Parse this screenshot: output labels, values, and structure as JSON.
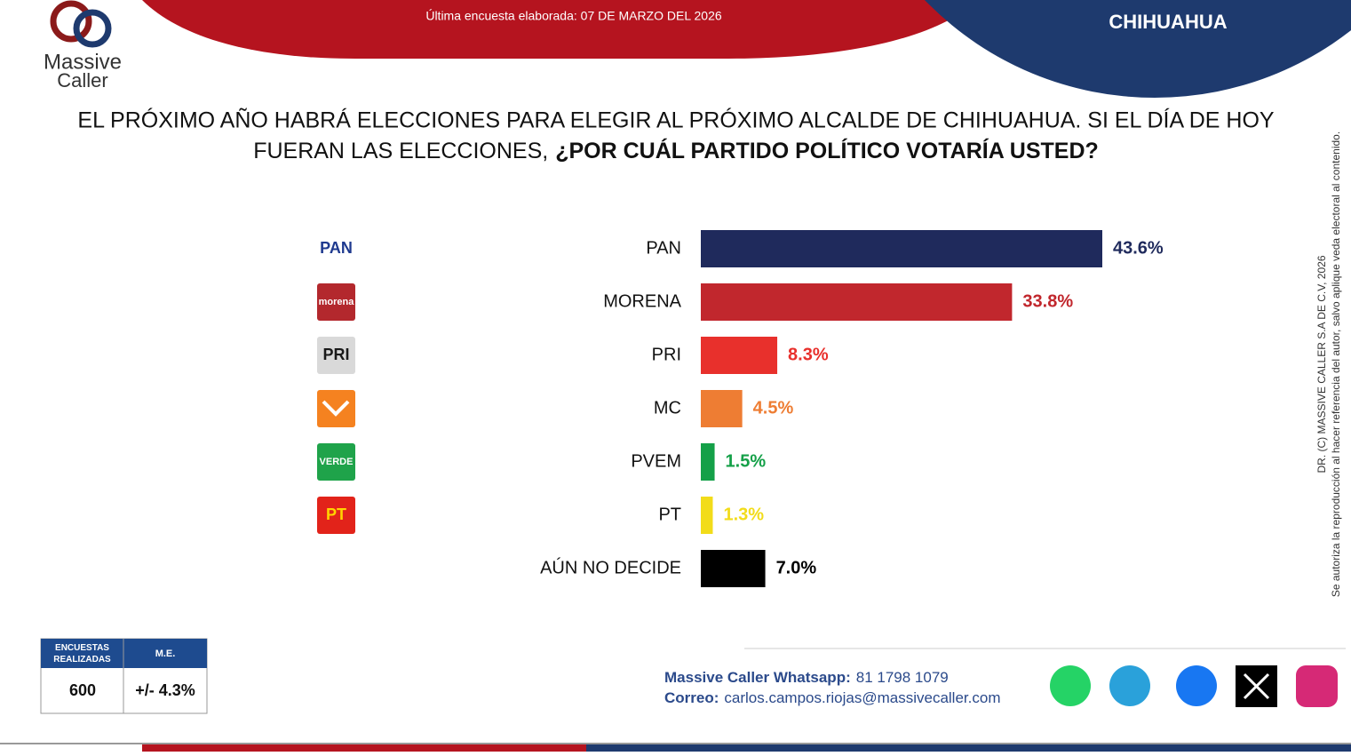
{
  "header": {
    "survey_date": "Última encuesta elaborada: 07 DE MARZO DEL 2026",
    "region": "CHIHUAHUA",
    "brand": [
      "Massive",
      "Caller"
    ]
  },
  "chart_data": {
    "type": "bar",
    "orientation": "horizontal",
    "title": [
      "EL PRÓXIMO AÑO HABRÁ ELECCIONES PARA ELEGIR AL PRÓXIMO ALCALDE DE CHIHUAHUA. SI EL DÍA DE HOY",
      "FUERAN LAS ELECCIONES,"
    ],
    "title_bold": "¿POR CUÁL PARTIDO POLÍTICO VOTARÍA USTED?",
    "categories": [
      "PAN",
      "MORENA",
      "PRI",
      "MC",
      "PVEM",
      "PT",
      "AÚN NO DECIDE"
    ],
    "values": [
      43.6,
      33.8,
      8.3,
      4.5,
      1.5,
      1.3,
      7.0
    ],
    "value_labels": [
      "43.6%",
      "33.8%",
      "8.3%",
      "4.5%",
      "1.5%",
      "1.3%",
      "7.0%"
    ],
    "colors": [
      "#1f2a5c",
      "#c1272d",
      "#e8302c",
      "#ee7d33",
      "#14a048",
      "#f2dc1a",
      "#000000"
    ],
    "logos": [
      {
        "text": "PAN",
        "color": "#ffffff",
        "ink": "#1f3a8f"
      },
      {
        "text": "morena",
        "color": "#b3282d",
        "ink": "#ffffff"
      },
      {
        "text": "PRI",
        "color": "#d9d9d9",
        "ink": "#1a1a1a"
      },
      {
        "color": "#f58220",
        "ink": "#ffffff"
      },
      {
        "text": "VERDE",
        "color": "#1fa34a",
        "ink": "#ffffff"
      },
      {
        "text": "PT",
        "color": "#e2231a",
        "ink": "#ffd400"
      }
    ]
  },
  "sample_table": {
    "headers": [
      "ENCUESTAS REALIZADAS",
      "M.E."
    ],
    "row": [
      "600",
      "+/- 4.3%"
    ]
  },
  "contact": {
    "whatsapp_label": "Massive Caller Whatsapp:",
    "whatsapp": "81 1798 1079",
    "email_label": "Correo:",
    "email": "carlos.campos.riojas@massivecaller.com"
  },
  "side_note": [
    "DR. (C) MASSIVE CALLER S.A DE C.V, 2026",
    "Se autoriza la reproducción al hacer referencia del autor, salvo aplique veda electoral al contenido."
  ]
}
